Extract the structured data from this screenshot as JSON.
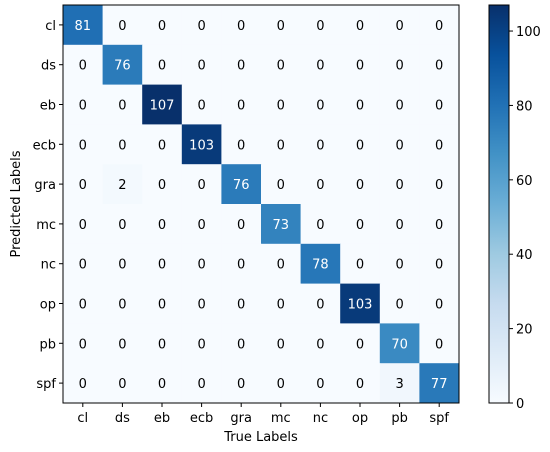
{
  "chart_data": {
    "type": "heatmap",
    "title": "",
    "xlabel": "True Labels",
    "ylabel": "Predicted Labels",
    "x_categories": [
      "cl",
      "ds",
      "eb",
      "ecb",
      "gra",
      "mc",
      "nc",
      "op",
      "pb",
      "spf"
    ],
    "y_categories": [
      "cl",
      "ds",
      "eb",
      "ecb",
      "gra",
      "mc",
      "nc",
      "op",
      "pb",
      "spf"
    ],
    "values": [
      [
        81,
        0,
        0,
        0,
        0,
        0,
        0,
        0,
        0,
        0
      ],
      [
        0,
        76,
        0,
        0,
        0,
        0,
        0,
        0,
        0,
        0
      ],
      [
        0,
        0,
        107,
        0,
        0,
        0,
        0,
        0,
        0,
        0
      ],
      [
        0,
        0,
        0,
        103,
        0,
        0,
        0,
        0,
        0,
        0
      ],
      [
        0,
        2,
        0,
        0,
        76,
        0,
        0,
        0,
        0,
        0
      ],
      [
        0,
        0,
        0,
        0,
        0,
        73,
        0,
        0,
        0,
        0
      ],
      [
        0,
        0,
        0,
        0,
        0,
        0,
        78,
        0,
        0,
        0
      ],
      [
        0,
        0,
        0,
        0,
        0,
        0,
        0,
        103,
        0,
        0
      ],
      [
        0,
        0,
        0,
        0,
        0,
        0,
        0,
        0,
        70,
        0
      ],
      [
        0,
        0,
        0,
        0,
        0,
        0,
        0,
        0,
        3,
        77
      ]
    ],
    "colormap": "Blues",
    "vmin": 0,
    "vmax": 107,
    "colorbar_ticks": [
      0,
      20,
      40,
      60,
      80,
      100
    ],
    "grid": false
  }
}
